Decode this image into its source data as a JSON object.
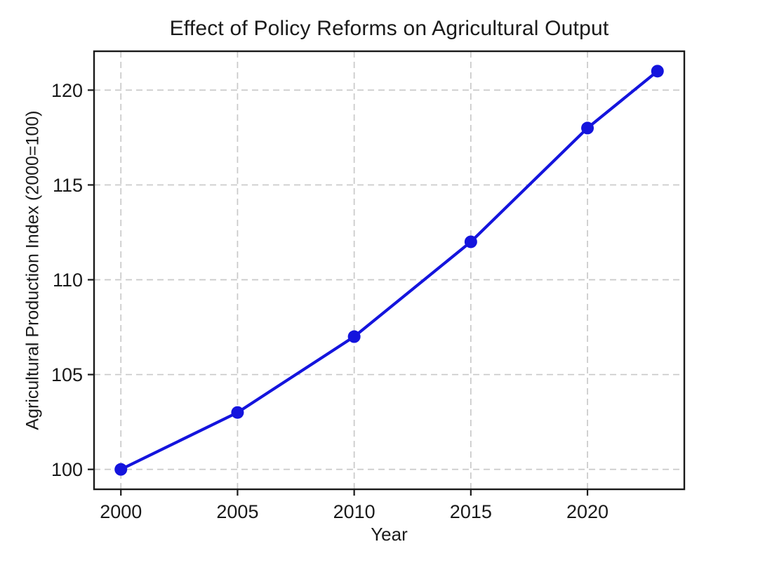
{
  "chart_data": {
    "type": "line",
    "title": "Effect of Policy Reforms on Agricultural Output",
    "xlabel": "Year",
    "ylabel": "Agricultural Production Index (2000=100)",
    "x": [
      2000,
      2005,
      2010,
      2015,
      2020,
      2023
    ],
    "values": [
      100,
      103,
      107,
      112,
      118,
      121
    ],
    "x_ticks": [
      2000,
      2005,
      2010,
      2015,
      2020
    ],
    "y_ticks": [
      100,
      105,
      110,
      115,
      120
    ],
    "xlim": [
      1998.85,
      2024.15
    ],
    "ylim": [
      98.95,
      122.05
    ],
    "grid": true,
    "grid_style": "dashed",
    "marker": "circle",
    "colors": {
      "line_color": "#1414dd",
      "marker_color": "#1414dd",
      "grid_color": "#c9c9c9",
      "frame_color": "#1a1a1a",
      "text_color": "#1b1b1b",
      "background": "#ffffff"
    }
  }
}
